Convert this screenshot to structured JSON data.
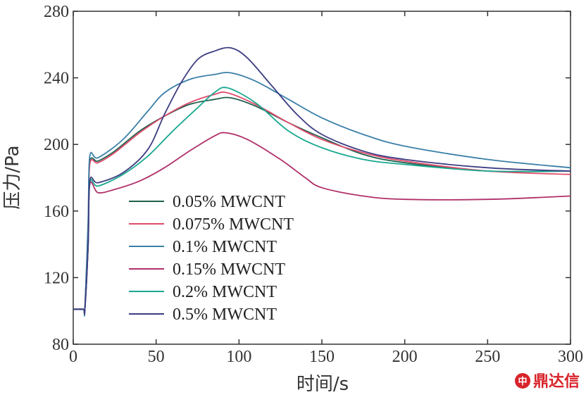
{
  "chart_data": {
    "type": "line",
    "title": "",
    "xlabel": "时间/s",
    "ylabel": "压力/Pa",
    "xlim": [
      0,
      300
    ],
    "ylim": [
      80,
      280
    ],
    "xticks": [
      0,
      50,
      100,
      150,
      200,
      250,
      300
    ],
    "yticks": [
      80,
      120,
      160,
      200,
      240,
      280
    ],
    "grid": false,
    "legend_position": "lower-left",
    "series": [
      {
        "name": "0.05% MWCNT",
        "color": "#1f5f4e",
        "points": [
          [
            0,
            101
          ],
          [
            6,
            101
          ],
          [
            7,
            101
          ],
          [
            9,
            150
          ],
          [
            10,
            189
          ],
          [
            15,
            190
          ],
          [
            25,
            196
          ],
          [
            40,
            208
          ],
          [
            55,
            217
          ],
          [
            70,
            224
          ],
          [
            85,
            227
          ],
          [
            95,
            228
          ],
          [
            110,
            223
          ],
          [
            130,
            213
          ],
          [
            150,
            204
          ],
          [
            175,
            194
          ],
          [
            200,
            189
          ],
          [
            250,
            184
          ],
          [
            300,
            184
          ]
        ]
      },
      {
        "name": "0.075% MWCNT",
        "color": "#e04a6a",
        "points": [
          [
            0,
            101
          ],
          [
            6,
            101
          ],
          [
            7,
            101
          ],
          [
            9,
            150
          ],
          [
            10,
            188
          ],
          [
            15,
            189
          ],
          [
            25,
            195
          ],
          [
            40,
            207
          ],
          [
            55,
            217
          ],
          [
            70,
            225
          ],
          [
            85,
            230
          ],
          [
            93,
            231
          ],
          [
            110,
            224
          ],
          [
            130,
            213
          ],
          [
            150,
            203
          ],
          [
            175,
            195
          ],
          [
            200,
            190
          ],
          [
            250,
            184
          ],
          [
            300,
            182
          ]
        ]
      },
      {
        "name": "0.1% MWCNT",
        "color": "#3a7fa8",
        "points": [
          [
            0,
            101
          ],
          [
            6,
            101
          ],
          [
            7,
            101
          ],
          [
            9,
            155
          ],
          [
            10,
            193
          ],
          [
            15,
            192
          ],
          [
            30,
            203
          ],
          [
            45,
            220
          ],
          [
            55,
            231
          ],
          [
            70,
            239
          ],
          [
            85,
            242
          ],
          [
            95,
            243
          ],
          [
            110,
            238
          ],
          [
            130,
            227
          ],
          [
            150,
            216
          ],
          [
            175,
            206
          ],
          [
            200,
            199
          ],
          [
            250,
            191
          ],
          [
            300,
            186
          ]
        ]
      },
      {
        "name": "0.15% MWCNT",
        "color": "#b0306a",
        "points": [
          [
            0,
            101
          ],
          [
            6,
            101
          ],
          [
            7,
            101
          ],
          [
            9,
            140
          ],
          [
            10,
            176
          ],
          [
            15,
            171
          ],
          [
            25,
            173
          ],
          [
            40,
            178
          ],
          [
            55,
            186
          ],
          [
            70,
            196
          ],
          [
            85,
            205
          ],
          [
            92,
            207
          ],
          [
            105,
            203
          ],
          [
            125,
            191
          ],
          [
            140,
            180
          ],
          [
            150,
            174
          ],
          [
            175,
            169
          ],
          [
            200,
            167
          ],
          [
            250,
            167
          ],
          [
            300,
            169
          ]
        ]
      },
      {
        "name": "0.2% MWCNT",
        "color": "#1aa890",
        "points": [
          [
            0,
            101
          ],
          [
            6,
            101
          ],
          [
            7,
            101
          ],
          [
            9,
            140
          ],
          [
            10,
            177
          ],
          [
            15,
            175
          ],
          [
            30,
            182
          ],
          [
            45,
            193
          ],
          [
            60,
            208
          ],
          [
            75,
            222
          ],
          [
            85,
            231
          ],
          [
            93,
            234
          ],
          [
            110,
            225
          ],
          [
            130,
            208
          ],
          [
            150,
            198
          ],
          [
            175,
            191
          ],
          [
            200,
            188
          ],
          [
            250,
            184
          ],
          [
            300,
            184
          ]
        ]
      },
      {
        "name": "0.5% MWCNT",
        "color": "#3c3c82",
        "points": [
          [
            0,
            101
          ],
          [
            6,
            101
          ],
          [
            7,
            101
          ],
          [
            9,
            140
          ],
          [
            10,
            178
          ],
          [
            15,
            177
          ],
          [
            30,
            183
          ],
          [
            45,
            197
          ],
          [
            55,
            218
          ],
          [
            65,
            237
          ],
          [
            75,
            251
          ],
          [
            85,
            256
          ],
          [
            95,
            258
          ],
          [
            105,
            252
          ],
          [
            120,
            235
          ],
          [
            135,
            218
          ],
          [
            150,
            206
          ],
          [
            175,
            196
          ],
          [
            200,
            191
          ],
          [
            250,
            186
          ],
          [
            300,
            184
          ]
        ]
      }
    ]
  },
  "watermark": {
    "text": "鼎达信",
    "color": "#d8232a"
  }
}
